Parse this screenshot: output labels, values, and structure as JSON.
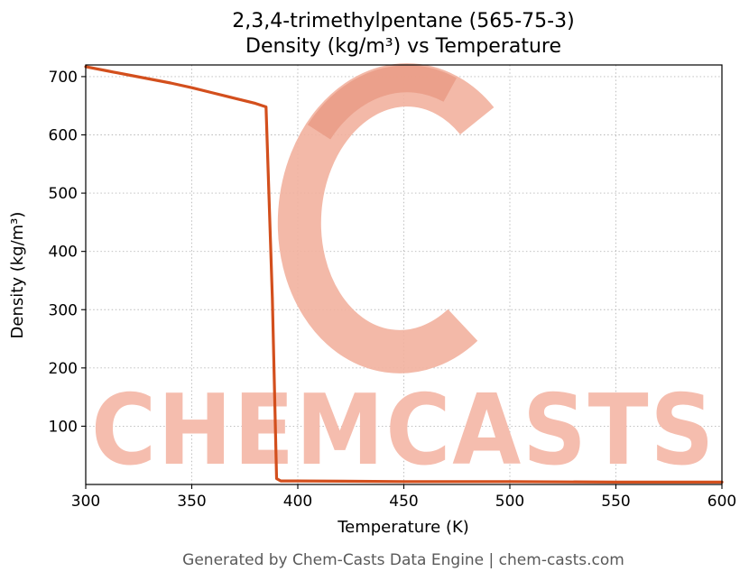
{
  "title": {
    "line1": "2,3,4-trimethylpentane (565-75-3)",
    "line2": "Density (kg/m³) vs Temperature"
  },
  "footer": {
    "text": "Generated by Chem-Casts Data Engine | chem-casts.com"
  },
  "watermark": {
    "text": "CHEMCASTS",
    "color": "#f5bdae",
    "logo_color": "#f2b19f",
    "logo_accent_color": "#ea9d87"
  },
  "chart_data": {
    "type": "line",
    "title": "2,3,4-trimethylpentane (565-75-3) — Density (kg/m³) vs Temperature",
    "xlabel": "Temperature (K)",
    "ylabel": "Density (kg/m³)",
    "xlim": [
      300,
      600
    ],
    "ylim": [
      0,
      720
    ],
    "xticks": [
      300,
      350,
      400,
      450,
      500,
      550,
      600
    ],
    "yticks": [
      100,
      200,
      300,
      400,
      500,
      600,
      700
    ],
    "grid": true,
    "legend": false,
    "line_color": "#d34f1d",
    "series": [
      {
        "name": "Density (kg/m³)",
        "color": "#d34f1d",
        "x": [
          300,
          310,
          320,
          330,
          340,
          350,
          360,
          370,
          380,
          385,
          388,
          390,
          392,
          400,
          450,
          500,
          550,
          600
        ],
        "y": [
          717,
          710,
          703,
          696,
          689,
          681,
          672,
          663,
          654,
          648,
          320,
          10,
          6,
          6,
          5,
          5,
          4,
          4
        ]
      }
    ]
  }
}
